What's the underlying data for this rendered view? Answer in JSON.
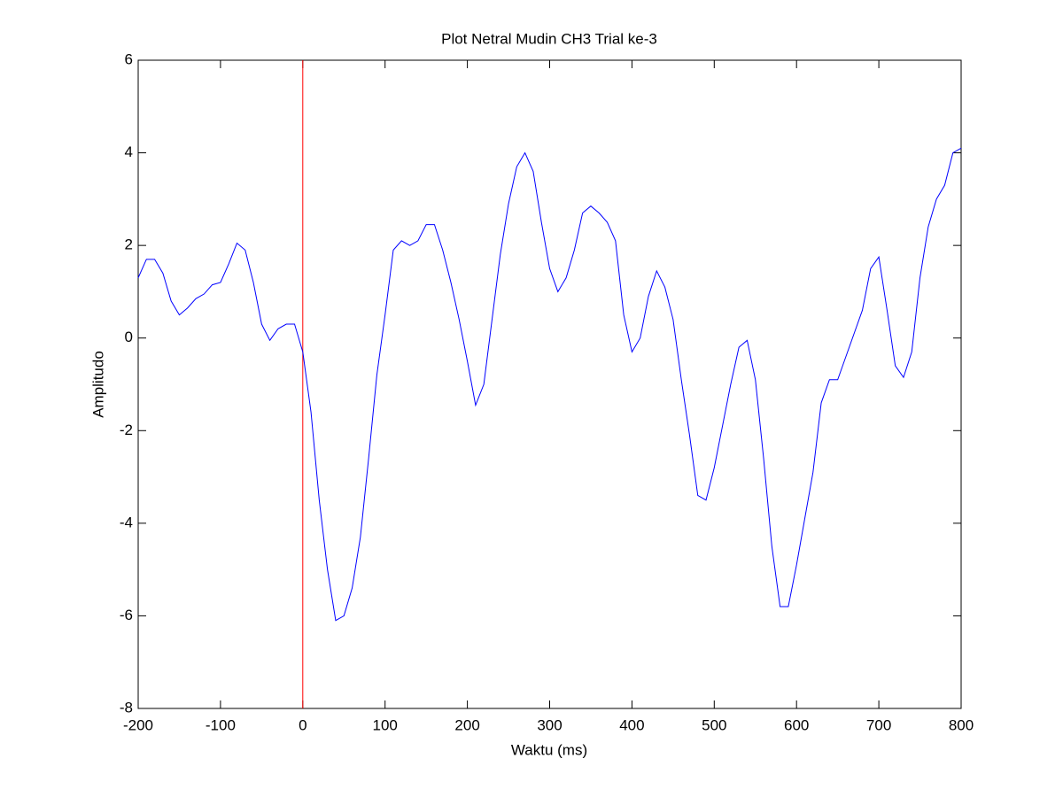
{
  "chart_data": {
    "type": "line",
    "title": "Plot Netral Mudin CH3 Trial ke-3",
    "x_label": "Waktu (ms)",
    "y_label": "Amplitudo",
    "x": [
      -200,
      -190,
      -180,
      -170,
      -160,
      -150,
      -140,
      -130,
      -120,
      -110,
      -100,
      -90,
      -80,
      -70,
      -60,
      -50,
      -40,
      -30,
      -20,
      -10,
      0,
      10,
      20,
      30,
      40,
      50,
      60,
      70,
      80,
      90,
      100,
      110,
      120,
      130,
      140,
      150,
      160,
      170,
      180,
      190,
      200,
      210,
      220,
      230,
      240,
      250,
      260,
      270,
      280,
      290,
      300,
      310,
      320,
      330,
      340,
      350,
      360,
      370,
      380,
      390,
      400,
      410,
      420,
      430,
      440,
      450,
      460,
      470,
      480,
      490,
      500,
      510,
      520,
      530,
      540,
      550,
      560,
      570,
      580,
      590,
      600,
      610,
      620,
      630,
      640,
      650,
      660,
      670,
      680,
      690,
      700,
      710,
      720,
      730,
      740,
      750,
      760,
      770,
      780,
      790,
      800
    ],
    "series": [
      {
        "name": "CH3",
        "color": "#0000ff",
        "values": [
          1.3,
          1.7,
          1.7,
          1.4,
          0.8,
          0.5,
          0.65,
          0.85,
          0.95,
          1.15,
          1.2,
          1.6,
          2.05,
          1.9,
          1.2,
          0.3,
          -0.05,
          0.2,
          0.3,
          0.3,
          -0.3,
          -1.6,
          -3.5,
          -5.0,
          -6.1,
          -6.0,
          -5.4,
          -4.3,
          -2.6,
          -0.8,
          0.5,
          1.9,
          2.1,
          2.0,
          2.1,
          2.45,
          2.45,
          1.9,
          1.2,
          0.4,
          -0.5,
          -1.45,
          -1.0,
          0.4,
          1.8,
          2.9,
          3.7,
          4.0,
          3.6,
          2.5,
          1.5,
          1.0,
          1.3,
          1.9,
          2.7,
          2.85,
          2.7,
          2.5,
          2.1,
          0.5,
          -0.3,
          0.0,
          0.9,
          1.45,
          1.1,
          0.4,
          -0.9,
          -2.1,
          -3.4,
          -3.5,
          -2.8,
          -1.9,
          -1.0,
          -0.2,
          -0.05,
          -0.9,
          -2.6,
          -4.5,
          -5.8,
          -5.8,
          -4.9,
          -3.9,
          -2.9,
          -1.4,
          -0.9,
          -0.9,
          -0.4,
          0.1,
          0.6,
          1.5,
          1.75,
          0.6,
          -0.6,
          -0.85,
          -0.3,
          1.3,
          2.4,
          3.0,
          3.3,
          4.0,
          4.1
        ]
      }
    ],
    "vertical_line": {
      "x": 0,
      "color": "#ff0000"
    },
    "xlim": [
      -200,
      800
    ],
    "xticks": [
      -200,
      -100,
      0,
      100,
      200,
      300,
      400,
      500,
      600,
      700,
      800
    ],
    "ylim": [
      -8,
      6
    ],
    "yticks": [
      -8,
      -6,
      -4,
      -2,
      0,
      2,
      4,
      6
    ]
  }
}
